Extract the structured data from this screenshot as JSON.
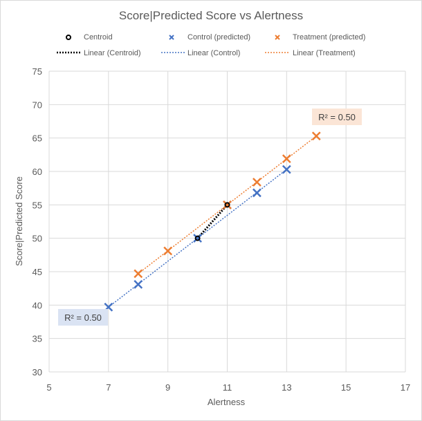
{
  "chart_data": {
    "type": "scatter",
    "title": "Score|Predicted Score vs Alertness",
    "xlabel": "Alertness",
    "ylabel": "Score|Predicted  Score",
    "xlim": [
      5,
      17
    ],
    "ylim": [
      30,
      75
    ],
    "xticks": [
      5,
      7,
      9,
      11,
      13,
      15,
      17
    ],
    "yticks": [
      30,
      35,
      40,
      45,
      50,
      55,
      60,
      65,
      70,
      75
    ],
    "grid": true,
    "legend_position": "top",
    "series": [
      {
        "name": "Centroid",
        "marker": "circle",
        "color": "#000000",
        "points": [
          [
            10,
            50
          ],
          [
            11,
            55
          ]
        ]
      },
      {
        "name": "Control (predicted)",
        "marker": "x",
        "color": "#4472C4",
        "points": [
          [
            7,
            39.7
          ],
          [
            8,
            43.1
          ],
          [
            10,
            50.0
          ],
          [
            11,
            55.0
          ],
          [
            12,
            56.8
          ],
          [
            13,
            60.3
          ]
        ]
      },
      {
        "name": "Treatment (predicted)",
        "marker": "x",
        "color": "#ED7D31",
        "points": [
          [
            8,
            44.7
          ],
          [
            9,
            48.1
          ],
          [
            11,
            55.0
          ],
          [
            12,
            58.4
          ],
          [
            13,
            61.9
          ],
          [
            14,
            65.3
          ]
        ]
      }
    ],
    "trendlines": [
      {
        "name": "Linear (Centroid)",
        "color": "#000000",
        "from": [
          10,
          50
        ],
        "to": [
          11,
          55
        ]
      },
      {
        "name": "Linear (Control)",
        "color": "#4472C4",
        "from": [
          7,
          39.7
        ],
        "to": [
          13,
          60.3
        ]
      },
      {
        "name": "Linear (Treatment)",
        "color": "#ED7D31",
        "from": [
          8,
          44.7
        ],
        "to": [
          14,
          65.3
        ]
      }
    ],
    "annotations": [
      {
        "text": "R² = 0.50",
        "series": "Treatment",
        "bg": "#FBE5D6"
      },
      {
        "text": "R² = 0.50",
        "series": "Control",
        "bg": "#DAE3F3"
      }
    ]
  }
}
